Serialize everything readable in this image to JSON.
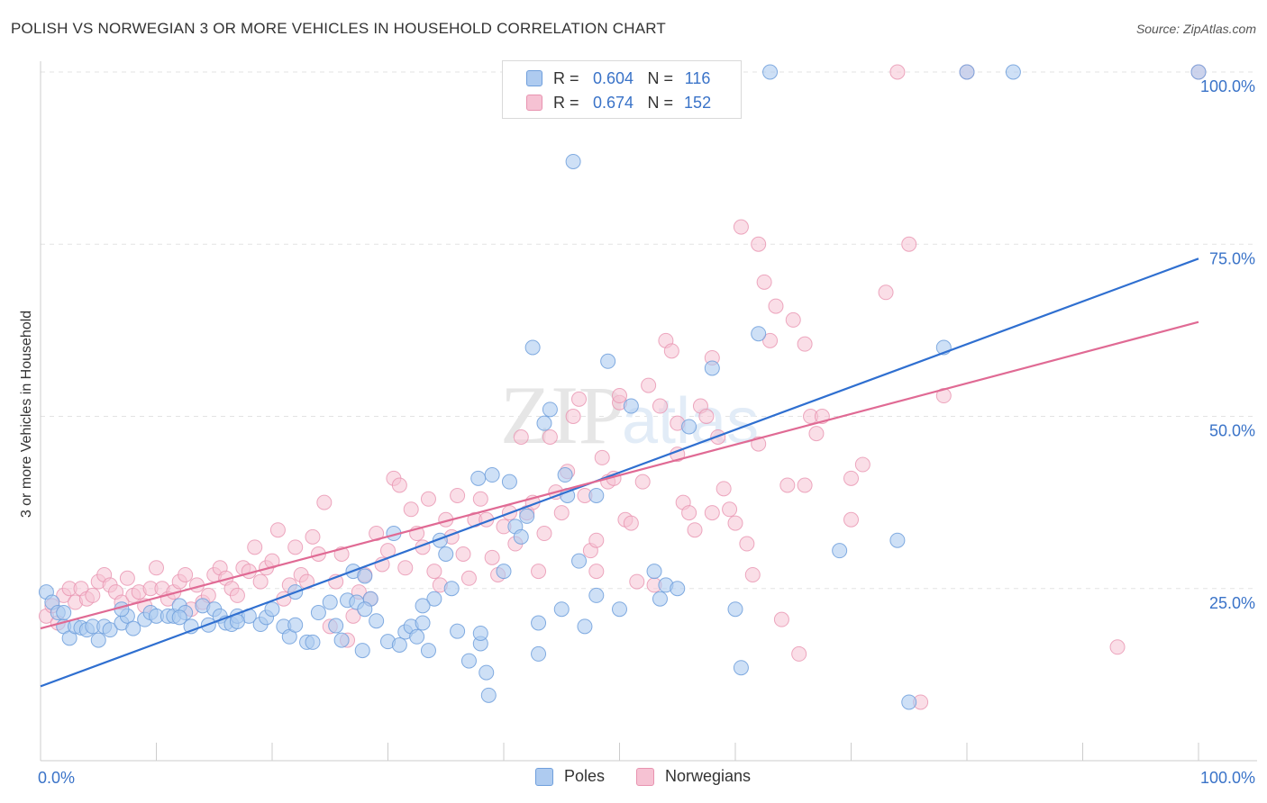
{
  "header": {
    "title": "POLISH VS NORWEGIAN 3 OR MORE VEHICLES IN HOUSEHOLD CORRELATION CHART",
    "source": "Source: ZipAtlas.com"
  },
  "legend": {
    "row1": {
      "r_label": "R =",
      "r_value": "0.604",
      "n_label": "N =",
      "n_value": "116"
    },
    "row2": {
      "r_label": "R =",
      "r_value": "0.674",
      "n_label": "N =",
      "n_value": "152"
    }
  },
  "bottom_legend": {
    "poles": "Poles",
    "norwegians": "Norwegians"
  },
  "watermark": {
    "zip": "ZIP",
    "atlas": "atlas"
  },
  "colors": {
    "poles_fill": "#aecbf0",
    "poles_stroke": "#6f9fdc",
    "poles_line": "#2f6fd0",
    "norw_fill": "#f6c2d3",
    "norw_stroke": "#e893b0",
    "norw_line": "#e06a94",
    "tick_label": "#3a73c8",
    "grid": "#e3e3e3"
  },
  "chart_data": {
    "type": "scatter",
    "title": "POLISH VS NORWEGIAN 3 OR MORE VEHICLES IN HOUSEHOLD CORRELATION CHART",
    "xlabel": "",
    "ylabel": "3 or more Vehicles in Household",
    "xlim": [
      0,
      100
    ],
    "ylim": [
      0,
      100
    ],
    "x_tick_labels": [
      "0.0%",
      "100.0%"
    ],
    "y_tick_labels": [
      "25.0%",
      "50.0%",
      "75.0%",
      "100.0%"
    ],
    "y_ticks": [
      25,
      50,
      75,
      100
    ],
    "grid": true,
    "legend_position": "top-center",
    "series": [
      {
        "name": "Poles",
        "r": 0.604,
        "n": 116,
        "trend": {
          "x": [
            0,
            100
          ],
          "y": [
            10.8,
            72.9
          ]
        },
        "points": [
          [
            0.5,
            24.5
          ],
          [
            1,
            23
          ],
          [
            1.5,
            21.5
          ],
          [
            2,
            19.5
          ],
          [
            2.5,
            17.8
          ],
          [
            3,
            19.5
          ],
          [
            3.5,
            19.3
          ],
          [
            4,
            19
          ],
          [
            4.5,
            19.5
          ],
          [
            5,
            17.5
          ],
          [
            5.5,
            19.5
          ],
          [
            6,
            19
          ],
          [
            7,
            20
          ],
          [
            7.5,
            21
          ],
          [
            8,
            19.2
          ],
          [
            9,
            20.5
          ],
          [
            9.5,
            21.5
          ],
          [
            10,
            21
          ],
          [
            11,
            21
          ],
          [
            11.5,
            21
          ],
          [
            12,
            22.5
          ],
          [
            12.5,
            21.5
          ],
          [
            13,
            19.5
          ],
          [
            14,
            22.5
          ],
          [
            14.5,
            19.7
          ],
          [
            15,
            22
          ],
          [
            15.5,
            21
          ],
          [
            16,
            20
          ],
          [
            16.5,
            19.8
          ],
          [
            17,
            21
          ],
          [
            18,
            21
          ],
          [
            19,
            19.8
          ],
          [
            19.5,
            20.8
          ],
          [
            20,
            22
          ],
          [
            21,
            19.5
          ],
          [
            21.5,
            18
          ],
          [
            22,
            19.7
          ],
          [
            23,
            17.2
          ],
          [
            23.5,
            17.2
          ],
          [
            24,
            21.5
          ],
          [
            25,
            23
          ],
          [
            25.5,
            19.6
          ],
          [
            26,
            17.5
          ],
          [
            26.5,
            23.3
          ],
          [
            27,
            27.5
          ],
          [
            27.3,
            23
          ],
          [
            27.8,
            16
          ],
          [
            28,
            26.8
          ],
          [
            28.5,
            23.5
          ],
          [
            29,
            20.3
          ],
          [
            30,
            17.3
          ],
          [
            30.5,
            33
          ],
          [
            31,
            16.8
          ],
          [
            31.5,
            18.7
          ],
          [
            32,
            19.5
          ],
          [
            32.5,
            18
          ],
          [
            33,
            20
          ],
          [
            33.5,
            16
          ],
          [
            34,
            23.5
          ],
          [
            34.5,
            32
          ],
          [
            35,
            30
          ],
          [
            35.5,
            25
          ],
          [
            36,
            18.8
          ],
          [
            37,
            14.5
          ],
          [
            37.8,
            41
          ],
          [
            38,
            17
          ],
          [
            38.5,
            12.8
          ],
          [
            38.7,
            9.5
          ],
          [
            39,
            41.5
          ],
          [
            40,
            27.5
          ],
          [
            40.5,
            40.5
          ],
          [
            41,
            34
          ],
          [
            41.5,
            32.5
          ],
          [
            42,
            35.5
          ],
          [
            42.5,
            60
          ],
          [
            43,
            15.5
          ],
          [
            43.5,
            49
          ],
          [
            44,
            51
          ],
          [
            45,
            22
          ],
          [
            45.3,
            41.5
          ],
          [
            45.5,
            38.5
          ],
          [
            46,
            87
          ],
          [
            46.5,
            29
          ],
          [
            47,
            19.5
          ],
          [
            48,
            38.5
          ],
          [
            49,
            58
          ],
          [
            50,
            22
          ],
          [
            51,
            51.5
          ],
          [
            52,
            100
          ],
          [
            53,
            27.5
          ],
          [
            53.5,
            23.5
          ],
          [
            54,
            25.5
          ],
          [
            55,
            25
          ],
          [
            56,
            48.5
          ],
          [
            58,
            57
          ],
          [
            60,
            22
          ],
          [
            60.5,
            13.5
          ],
          [
            62,
            62
          ],
          [
            63,
            100
          ],
          [
            69,
            30.5
          ],
          [
            74,
            32
          ],
          [
            75,
            8.5
          ],
          [
            78,
            60
          ],
          [
            80,
            100
          ],
          [
            84,
            100
          ],
          [
            100,
            100
          ],
          [
            2,
            21.5
          ],
          [
            7,
            22
          ],
          [
            12,
            20.8
          ],
          [
            17,
            20.2
          ],
          [
            22,
            24.5
          ],
          [
            28,
            22
          ],
          [
            33,
            22.5
          ],
          [
            38,
            18.5
          ],
          [
            43,
            20
          ],
          [
            48,
            24
          ]
        ]
      },
      {
        "name": "Norwegians",
        "r": 0.674,
        "n": 152,
        "trend": {
          "x": [
            0,
            100
          ],
          "y": [
            19.2,
            63.7
          ]
        },
        "points": [
          [
            0.5,
            21
          ],
          [
            1,
            22.5
          ],
          [
            1.5,
            20
          ],
          [
            2,
            24
          ],
          [
            2.5,
            25
          ],
          [
            3,
            23
          ],
          [
            3.5,
            25
          ],
          [
            4,
            23.5
          ],
          [
            4.5,
            24
          ],
          [
            5,
            26
          ],
          [
            5.5,
            27
          ],
          [
            6,
            25.5
          ],
          [
            6.5,
            24.5
          ],
          [
            7,
            23
          ],
          [
            7.5,
            26.5
          ],
          [
            8,
            24
          ],
          [
            8.5,
            24.5
          ],
          [
            9,
            22.5
          ],
          [
            9.5,
            25
          ],
          [
            10,
            28
          ],
          [
            10.5,
            25
          ],
          [
            11,
            23.5
          ],
          [
            11.5,
            24.5
          ],
          [
            12,
            26
          ],
          [
            12.5,
            27
          ],
          [
            13,
            22
          ],
          [
            13.5,
            25.5
          ],
          [
            14,
            23
          ],
          [
            14.5,
            24
          ],
          [
            15,
            27
          ],
          [
            15.5,
            28
          ],
          [
            16,
            26.5
          ],
          [
            16.5,
            25
          ],
          [
            17,
            24
          ],
          [
            17.5,
            28
          ],
          [
            18,
            27.5
          ],
          [
            18.5,
            31
          ],
          [
            19,
            26
          ],
          [
            19.5,
            28
          ],
          [
            20,
            29
          ],
          [
            20.5,
            33.5
          ],
          [
            21,
            23.5
          ],
          [
            21.5,
            25.5
          ],
          [
            22,
            31
          ],
          [
            22.5,
            27
          ],
          [
            23,
            26
          ],
          [
            23.5,
            32.5
          ],
          [
            24,
            30
          ],
          [
            24.5,
            37.5
          ],
          [
            25,
            19.5
          ],
          [
            25.5,
            26
          ],
          [
            26,
            30
          ],
          [
            26.5,
            17.5
          ],
          [
            27,
            21
          ],
          [
            27.5,
            24.5
          ],
          [
            28,
            27
          ],
          [
            28.5,
            23.5
          ],
          [
            29,
            33
          ],
          [
            29.5,
            28.5
          ],
          [
            30,
            30.5
          ],
          [
            30.5,
            41
          ],
          [
            31,
            40
          ],
          [
            31.5,
            28
          ],
          [
            32,
            36.5
          ],
          [
            32.5,
            33
          ],
          [
            33,
            31
          ],
          [
            33.5,
            38
          ],
          [
            34,
            27.5
          ],
          [
            34.5,
            25.5
          ],
          [
            35,
            35
          ],
          [
            35.5,
            32.5
          ],
          [
            36,
            38.5
          ],
          [
            36.5,
            30
          ],
          [
            37,
            26.5
          ],
          [
            37.5,
            35
          ],
          [
            38,
            38
          ],
          [
            38.5,
            35
          ],
          [
            39,
            29.5
          ],
          [
            39.5,
            27
          ],
          [
            40,
            34
          ],
          [
            40.5,
            36
          ],
          [
            41,
            31.5
          ],
          [
            41.5,
            47
          ],
          [
            42,
            36
          ],
          [
            42.5,
            37.5
          ],
          [
            43,
            27.5
          ],
          [
            43.5,
            33
          ],
          [
            44,
            47
          ],
          [
            44.5,
            39
          ],
          [
            45,
            36
          ],
          [
            45.5,
            42
          ],
          [
            46,
            50
          ],
          [
            46.5,
            52.5
          ],
          [
            47,
            38.5
          ],
          [
            47.5,
            30.5
          ],
          [
            48,
            27.5
          ],
          [
            48.5,
            44
          ],
          [
            49,
            40.5
          ],
          [
            49.5,
            41
          ],
          [
            50,
            52
          ],
          [
            50.5,
            35
          ],
          [
            51,
            34.5
          ],
          [
            51.5,
            26
          ],
          [
            52,
            40.5
          ],
          [
            52.5,
            54.5
          ],
          [
            53,
            25.5
          ],
          [
            53.5,
            51.5
          ],
          [
            54,
            61
          ],
          [
            54.5,
            59.5
          ],
          [
            55,
            44.5
          ],
          [
            55.5,
            37.5
          ],
          [
            56,
            36
          ],
          [
            56.5,
            33.5
          ],
          [
            57,
            51.5
          ],
          [
            57.5,
            50
          ],
          [
            58,
            58.5
          ],
          [
            58.5,
            47
          ],
          [
            59,
            39.5
          ],
          [
            59.5,
            36.5
          ],
          [
            60,
            34.5
          ],
          [
            60.5,
            77.5
          ],
          [
            61,
            31.5
          ],
          [
            61.5,
            27
          ],
          [
            62,
            75
          ],
          [
            62.5,
            69.5
          ],
          [
            63,
            61
          ],
          [
            63.5,
            66
          ],
          [
            64,
            20.5
          ],
          [
            64.5,
            40
          ],
          [
            65,
            64
          ],
          [
            65.5,
            15.5
          ],
          [
            66,
            60.5
          ],
          [
            66.5,
            50
          ],
          [
            67,
            47.5
          ],
          [
            67.5,
            50
          ],
          [
            70,
            41
          ],
          [
            71,
            43
          ],
          [
            73,
            68
          ],
          [
            74,
            100
          ],
          [
            75,
            75
          ],
          [
            76,
            8.5
          ],
          [
            78,
            53
          ],
          [
            80,
            100
          ],
          [
            93,
            16.5
          ],
          [
            100,
            100
          ],
          [
            55,
            49
          ],
          [
            58,
            36
          ],
          [
            62,
            46
          ],
          [
            66,
            40
          ],
          [
            70,
            35
          ],
          [
            50,
            53
          ],
          [
            48,
            32
          ]
        ]
      }
    ]
  }
}
